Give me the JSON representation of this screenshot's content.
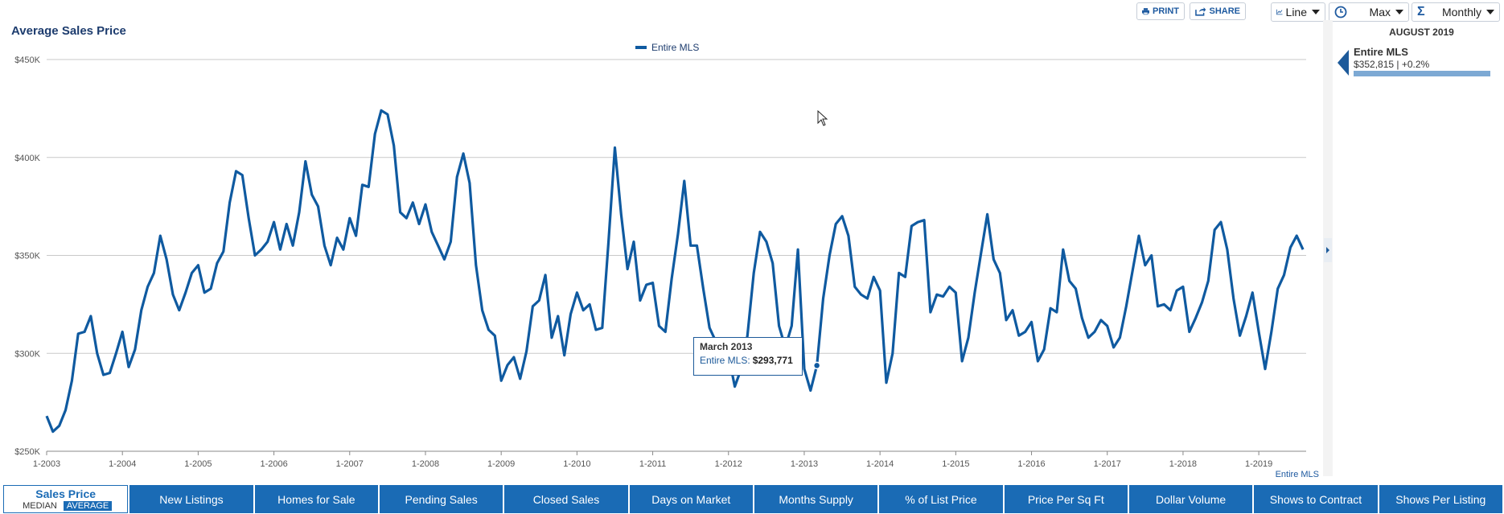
{
  "chart_title": "Average Sales Price",
  "toolbar": {
    "print_label": "PRINT",
    "share_label": "SHARE",
    "chart_type": "Line",
    "range": "Max",
    "interval": "Monthly"
  },
  "side_panel": {
    "month": "AUGUST 2019",
    "series_name": "Entire MLS",
    "value_text": "$352,815 | +0.2%"
  },
  "tooltip": {
    "title": "March 2013",
    "series": "Entire MLS:",
    "value": "$293,771"
  },
  "x_corner_label": "Entire MLS",
  "tabs": [
    {
      "label": "Sales Price",
      "active": true,
      "sub": [
        "MEDIAN",
        "AVERAGE"
      ],
      "sub_selected": "AVERAGE"
    },
    {
      "label": "New Listings"
    },
    {
      "label": "Homes for Sale"
    },
    {
      "label": "Pending Sales"
    },
    {
      "label": "Closed Sales"
    },
    {
      "label": "Days on Market"
    },
    {
      "label": "Months Supply"
    },
    {
      "label": "% of List Price"
    },
    {
      "label": "Price Per Sq Ft"
    },
    {
      "label": "Dollar Volume"
    },
    {
      "label": "Shows to Contract"
    },
    {
      "label": "Shows Per Listing"
    }
  ],
  "colors": {
    "series": "#0f5aa0",
    "accent": "#1a6bb5"
  },
  "chart_data": {
    "type": "line",
    "title": "Average Sales Price",
    "legend": [
      "Entire MLS"
    ],
    "legend_position": "top-center",
    "grid": true,
    "ylim": [
      250000,
      450000
    ],
    "y_ticks": [
      {
        "value": 250000,
        "label": "$250K"
      },
      {
        "value": 300000,
        "label": "$300K"
      },
      {
        "value": 350000,
        "label": "$350K"
      },
      {
        "value": 400000,
        "label": "$400K"
      },
      {
        "value": 450000,
        "label": "$450K"
      }
    ],
    "x_ticks": [
      "1-2003",
      "1-2004",
      "1-2005",
      "1-2006",
      "1-2007",
      "1-2008",
      "1-2009",
      "1-2010",
      "1-2011",
      "1-2012",
      "1-2013",
      "1-2014",
      "1-2015",
      "1-2016",
      "1-2017",
      "1-2018",
      "1-2019"
    ],
    "x_start": "1-2003",
    "x_interval": "monthly",
    "series": [
      {
        "name": "Entire MLS",
        "values": [
          268000,
          260000,
          263000,
          271000,
          286000,
          310000,
          311000,
          319000,
          300000,
          289000,
          290000,
          300000,
          311000,
          293000,
          302000,
          322000,
          334000,
          341000,
          360000,
          348000,
          330000,
          322000,
          331000,
          341000,
          345000,
          331000,
          333000,
          346000,
          352000,
          377000,
          393000,
          391000,
          369000,
          350000,
          353000,
          357000,
          367000,
          353000,
          366000,
          355000,
          372000,
          398000,
          381000,
          375000,
          355000,
          345000,
          359000,
          353000,
          369000,
          360000,
          386000,
          385000,
          412000,
          424000,
          422000,
          406000,
          372000,
          369000,
          377000,
          366000,
          376000,
          362000,
          355000,
          348000,
          357000,
          390000,
          402000,
          387000,
          345000,
          322000,
          312000,
          309000,
          286000,
          294000,
          298000,
          287000,
          301000,
          324000,
          327000,
          340000,
          308000,
          319000,
          299000,
          320000,
          331000,
          322000,
          325000,
          312000,
          313000,
          357000,
          405000,
          371000,
          343000,
          357000,
          327000,
          335000,
          336000,
          314000,
          311000,
          338000,
          361000,
          388000,
          355000,
          355000,
          333000,
          313000,
          306000,
          301000,
          299000,
          283000,
          292000,
          309000,
          341000,
          362000,
          357000,
          346000,
          314000,
          303000,
          314000,
          353000,
          292000,
          281000,
          293771,
          328000,
          350000,
          366000,
          370000,
          360000,
          334000,
          330000,
          328000,
          339000,
          332000,
          285000,
          300000,
          341000,
          339000,
          365000,
          367000,
          368000,
          321000,
          330000,
          329000,
          334000,
          331000,
          296000,
          308000,
          331000,
          351000,
          371000,
          348000,
          341000,
          317000,
          322000,
          309000,
          311000,
          316000,
          296000,
          302000,
          323000,
          321000,
          353000,
          337000,
          333000,
          318000,
          308000,
          311000,
          317000,
          314000,
          303000,
          308000,
          324000,
          342000,
          360000,
          345000,
          350000,
          324000,
          325000,
          322000,
          332000,
          334000,
          311000,
          318000,
          326000,
          337000,
          363000,
          367000,
          353000,
          328000,
          309000,
          319000,
          331000,
          311000,
          292000,
          311000,
          333000,
          340000,
          354000,
          360000,
          353000
        ]
      }
    ],
    "highlight": {
      "label": "March 2013",
      "value": 293771
    }
  }
}
